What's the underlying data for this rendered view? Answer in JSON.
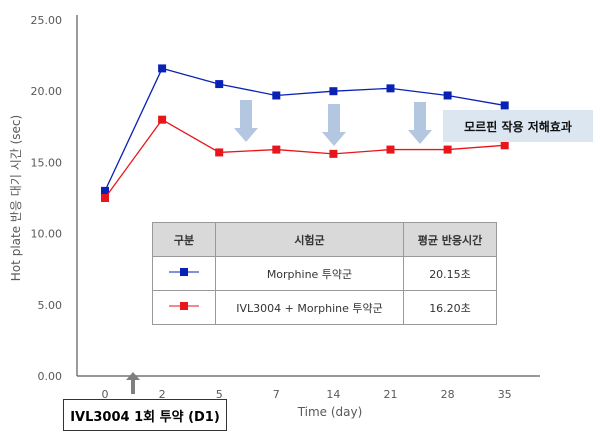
{
  "chart_data": {
    "type": "line",
    "categories": [
      "0",
      "2",
      "5",
      "7",
      "14",
      "21",
      "28",
      "35"
    ],
    "xlabel": "Time (day)",
    "ylabel": "Hot plate 반응 대기 시간 (sec)",
    "ylim": [
      0,
      25
    ],
    "yticks": [
      "0.00",
      "5.00",
      "10.00",
      "15.00",
      "20.00",
      "25.00"
    ],
    "grid": false,
    "series": [
      {
        "name": "Morphine 투약군",
        "color": "#0a22b4",
        "values": [
          13.0,
          21.6,
          20.5,
          19.7,
          20.0,
          20.2,
          19.7,
          19.0
        ]
      },
      {
        "name": "IVL3004 + Morphine 투약군",
        "color": "#e8151b",
        "values": [
          12.5,
          18.0,
          15.7,
          15.9,
          15.6,
          15.9,
          15.9,
          16.2
        ]
      }
    ],
    "annotation": "모르핀 작용 저해효과",
    "dose_label": "IVL3004 1회 투약 (D1)",
    "legend_table": {
      "headers": [
        "구분",
        "시험군",
        "평균 반응시간"
      ],
      "rows": [
        [
          "Morphine 투약군",
          "20.15초"
        ],
        [
          "IVL3004 + Morphine 투약군",
          "16.20초"
        ]
      ]
    }
  }
}
